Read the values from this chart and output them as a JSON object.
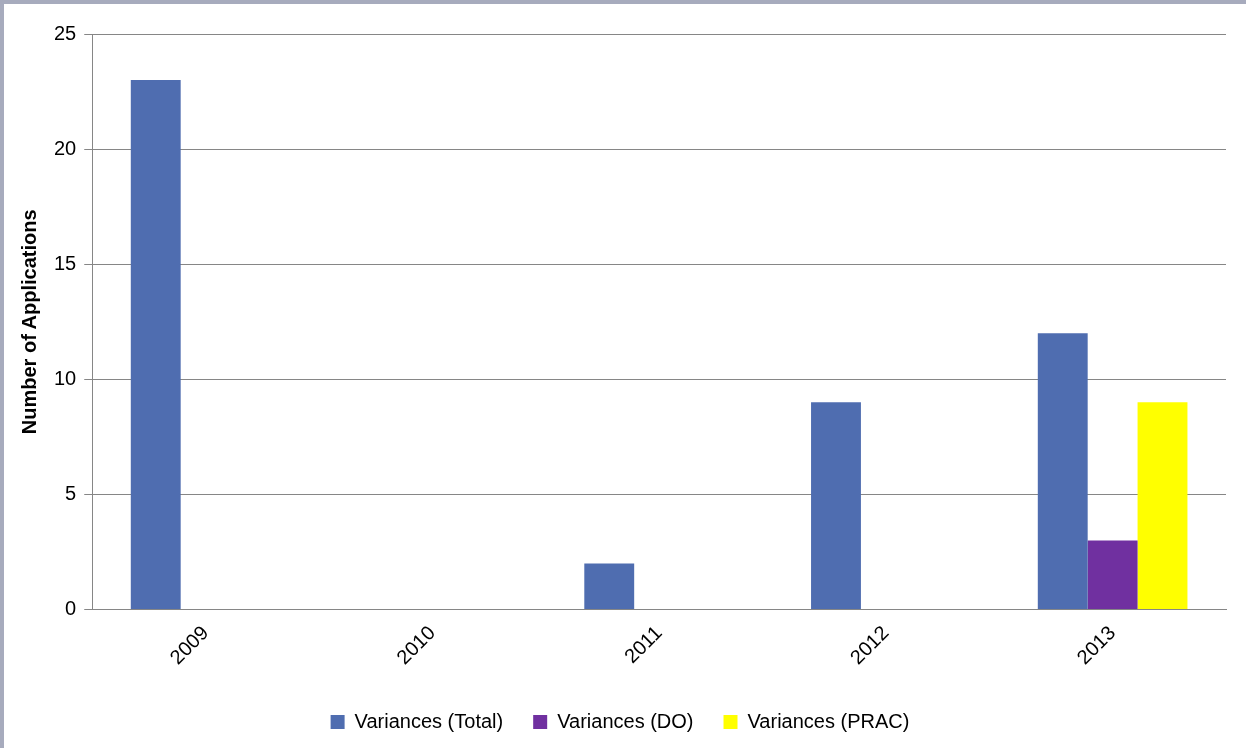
{
  "chart_data": {
    "type": "bar",
    "ylabel": "Number of Applications",
    "categories": [
      "2009",
      "2010",
      "2011",
      "2012",
      "2013"
    ],
    "series": [
      {
        "name": "Variances (Total)",
        "color": "#4f6db0",
        "values": [
          23,
          0,
          2,
          9,
          12
        ]
      },
      {
        "name": "Variances (DO)",
        "color": "#7030a0",
        "values": [
          0,
          0,
          0,
          0,
          3
        ]
      },
      {
        "name": "Variances (PRAC)",
        "color": "#ffff00",
        "values": [
          0,
          0,
          0,
          0,
          9
        ]
      }
    ],
    "ylim": [
      0,
      25
    ],
    "yticks": [
      0,
      5,
      10,
      15,
      20,
      25
    ],
    "grid": "y",
    "legend": "bottom"
  }
}
